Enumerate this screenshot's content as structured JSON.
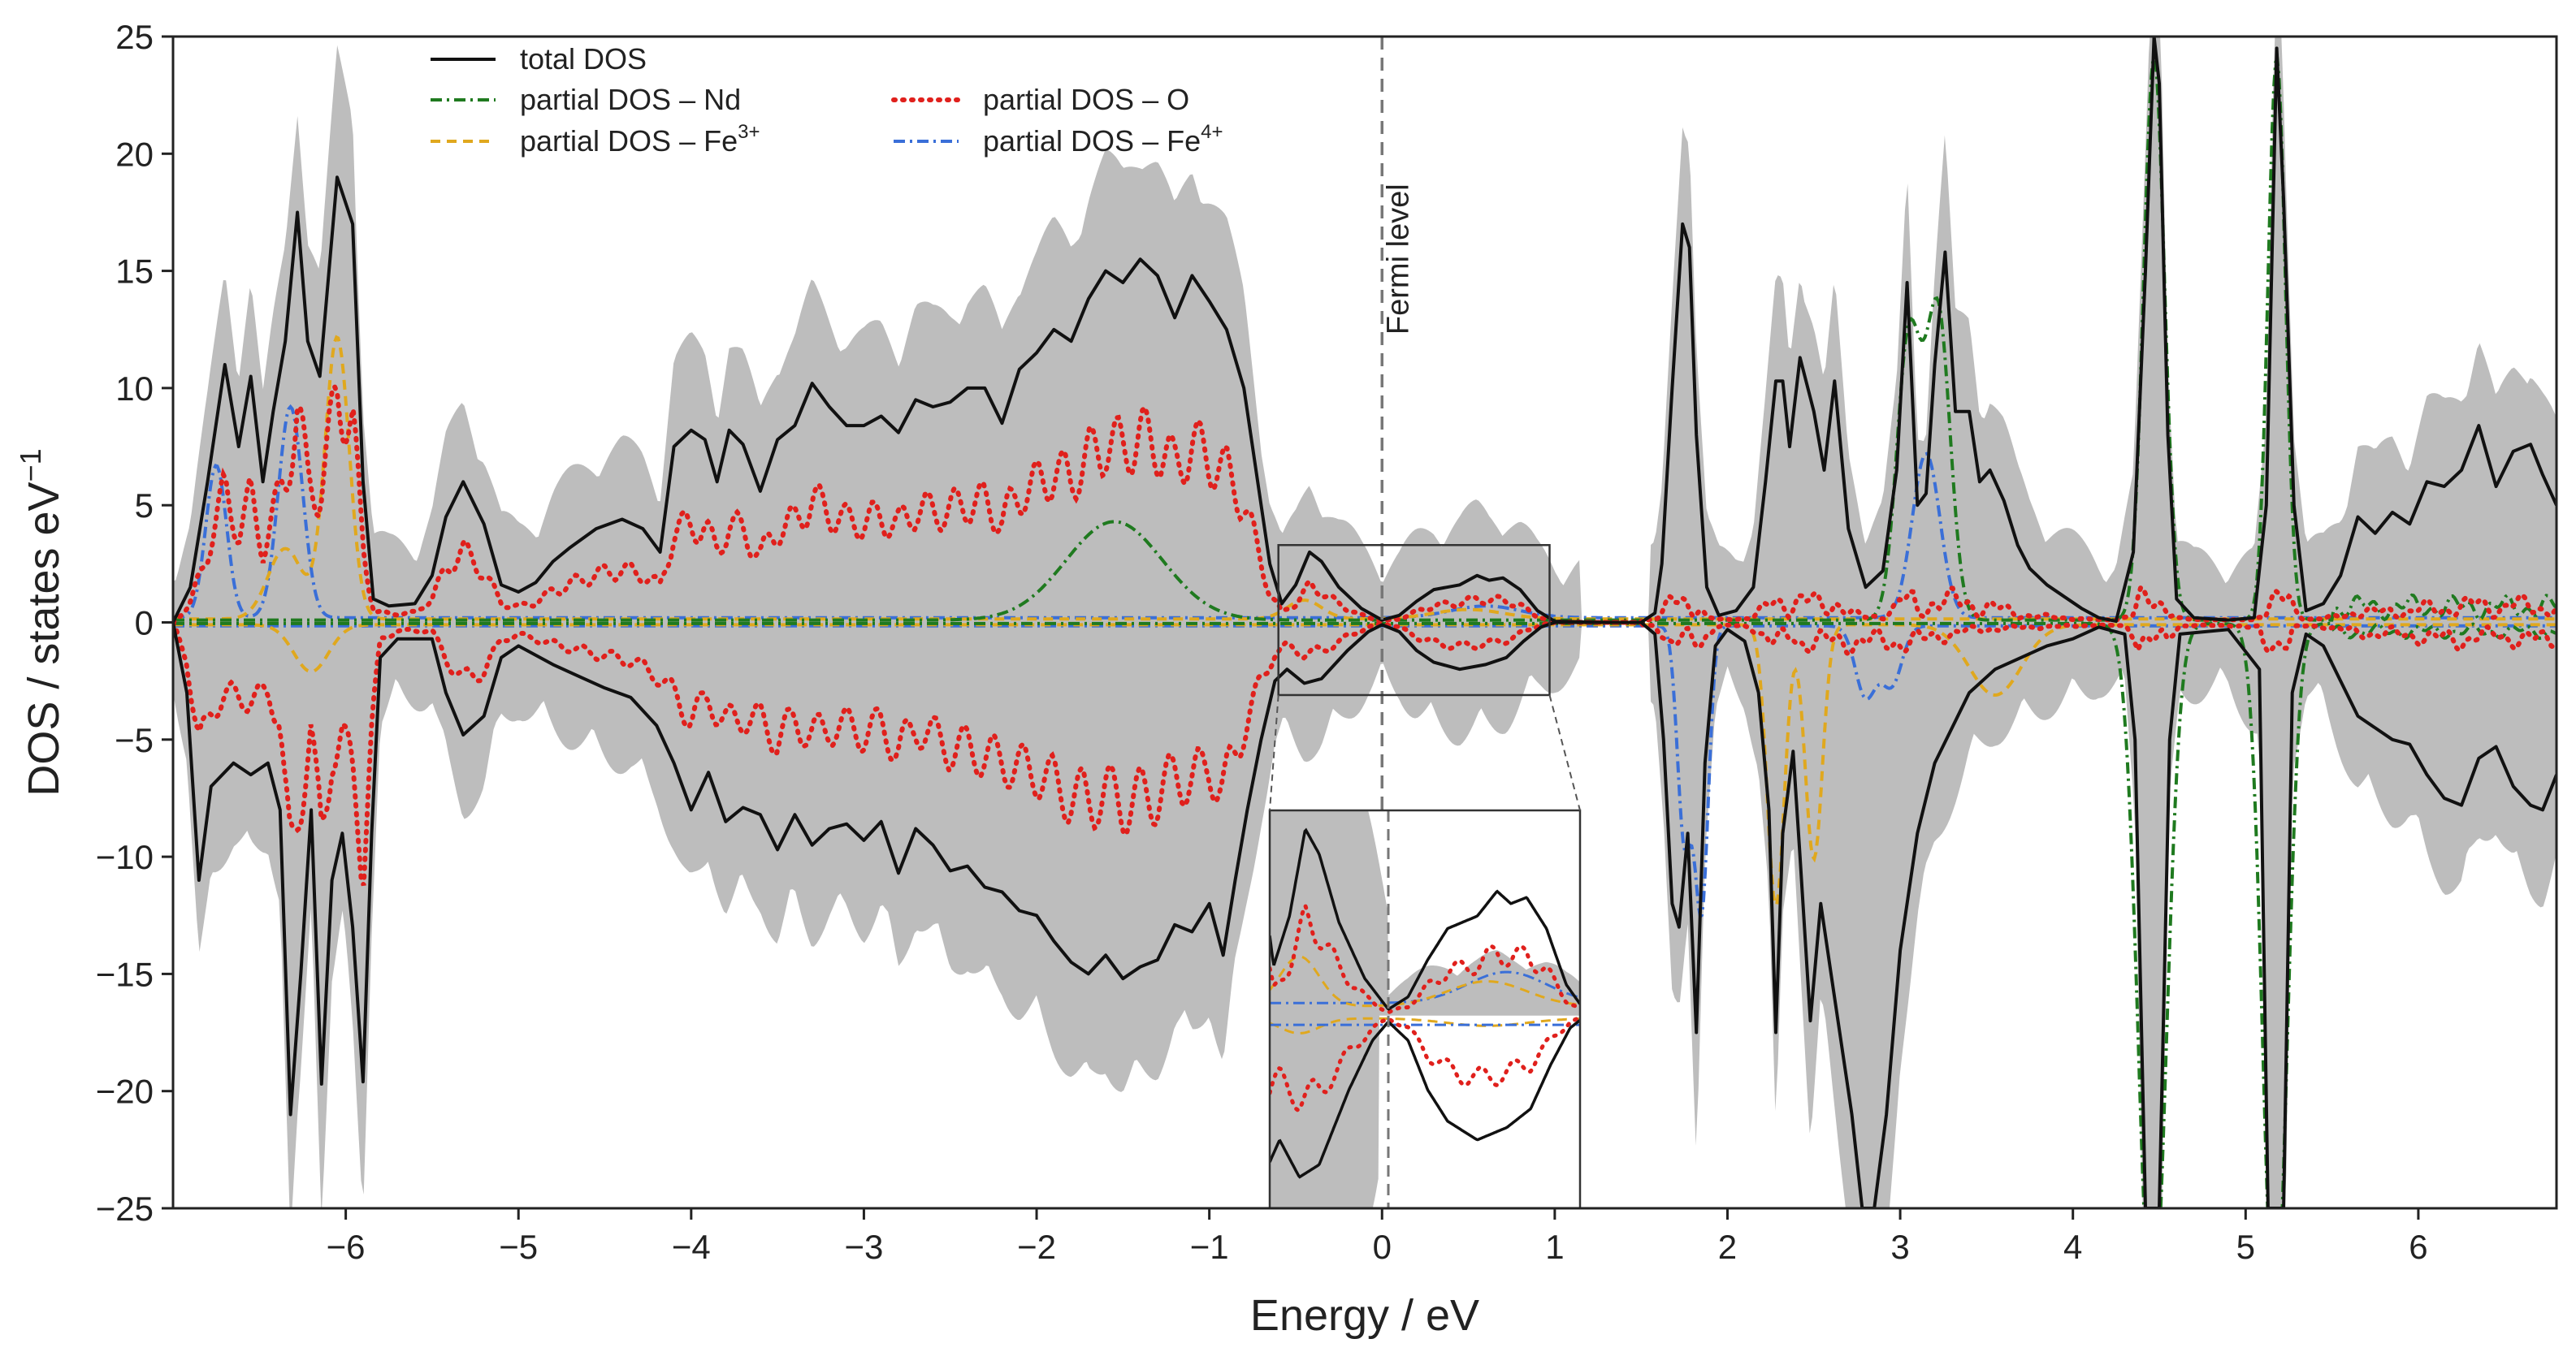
{
  "chart_data": {
    "type": "line",
    "title": "",
    "xlabel": "Energy / eV",
    "ylabel_main": "DOS / states eV",
    "ylabel_sup": "−1",
    "xlim": [
      -7.0,
      6.8
    ],
    "ylim": [
      -25,
      25
    ],
    "xticks": [
      -6,
      -5,
      -4,
      -3,
      -2,
      -1,
      0,
      1,
      2,
      3,
      4,
      5,
      6
    ],
    "yticks": [
      -25,
      -20,
      -15,
      -10,
      -5,
      0,
      5,
      10,
      15,
      20,
      25
    ],
    "tick_labels_x": [
      "−6",
      "−5",
      "−4",
      "−3",
      "−2",
      "−1",
      "0",
      "1",
      "2",
      "3",
      "4",
      "5",
      "6"
    ],
    "tick_labels_y": [
      "−25",
      "−20",
      "−15",
      "−10",
      "−5",
      "0",
      "5",
      "10",
      "15",
      "20",
      "25"
    ],
    "fermi_label": "Fermi level",
    "fermi_energy": 0,
    "legend_position": "top-left",
    "legend": [
      {
        "key": "total",
        "label": "total DOS",
        "sup": "",
        "color": "#111111",
        "dash": "none"
      },
      {
        "key": "nd",
        "label": "partial DOS – Nd",
        "sup": "",
        "color": "#1f7a1f",
        "dash": "14,6,3,6"
      },
      {
        "key": "fe3",
        "label": "partial DOS – Fe",
        "sup": "3+",
        "color": "#e0a81e",
        "dash": "12,8"
      },
      {
        "key": "o",
        "label": "partial DOS – O",
        "sup": "",
        "color": "#e0201c",
        "dash": "2,9"
      },
      {
        "key": "fe4",
        "label": "partial DOS – Fe",
        "sup": "4+",
        "color": "#3a6fd8",
        "dash": "14,6,3,6"
      }
    ],
    "shaded_band_color": "#bdbdbd",
    "series": [
      {
        "name": "total DOS (spin up)",
        "color": "#111111",
        "points": [
          [
            -7.0,
            0
          ],
          [
            -6.9,
            1.5
          ],
          [
            -6.8,
            6
          ],
          [
            -6.7,
            11
          ],
          [
            -6.62,
            7.5
          ],
          [
            -6.55,
            10.5
          ],
          [
            -6.48,
            6
          ],
          [
            -6.42,
            9
          ],
          [
            -6.35,
            12
          ],
          [
            -6.28,
            17.5
          ],
          [
            -6.22,
            12
          ],
          [
            -6.15,
            10.5
          ],
          [
            -6.05,
            19
          ],
          [
            -5.96,
            17
          ],
          [
            -5.9,
            6
          ],
          [
            -5.84,
            1
          ],
          [
            -5.75,
            0.7
          ],
          [
            -5.6,
            0.8
          ],
          [
            -5.5,
            2
          ],
          [
            -5.42,
            4.5
          ],
          [
            -5.32,
            6
          ],
          [
            -5.2,
            4.2
          ],
          [
            -5.1,
            1.6
          ],
          [
            -5.0,
            1.3
          ],
          [
            -4.9,
            1.7
          ],
          [
            -4.8,
            2.6
          ],
          [
            -4.7,
            3.2
          ],
          [
            -4.55,
            4
          ],
          [
            -4.4,
            4.4
          ],
          [
            -4.28,
            4
          ],
          [
            -4.18,
            3
          ],
          [
            -4.1,
            7.5
          ],
          [
            -4.0,
            8.2
          ],
          [
            -3.92,
            7.8
          ],
          [
            -3.85,
            6
          ],
          [
            -3.78,
            8.2
          ],
          [
            -3.7,
            7.6
          ],
          [
            -3.6,
            5.6
          ],
          [
            -3.5,
            7.8
          ],
          [
            -3.4,
            8.4
          ],
          [
            -3.3,
            10.2
          ],
          [
            -3.2,
            9.2
          ],
          [
            -3.1,
            8.4
          ],
          [
            -3.0,
            8.4
          ],
          [
            -2.9,
            8.8
          ],
          [
            -2.8,
            8.1
          ],
          [
            -2.7,
            9.5
          ],
          [
            -2.6,
            9.2
          ],
          [
            -2.5,
            9.4
          ],
          [
            -2.4,
            10
          ],
          [
            -2.3,
            10
          ],
          [
            -2.2,
            8.5
          ],
          [
            -2.1,
            10.8
          ],
          [
            -2.0,
            11.5
          ],
          [
            -1.9,
            12.5
          ],
          [
            -1.8,
            12
          ],
          [
            -1.7,
            13.8
          ],
          [
            -1.6,
            15
          ],
          [
            -1.5,
            14.5
          ],
          [
            -1.4,
            15.5
          ],
          [
            -1.3,
            14.8
          ],
          [
            -1.2,
            13
          ],
          [
            -1.1,
            14.8
          ],
          [
            -1.0,
            13.7
          ],
          [
            -0.9,
            12.5
          ],
          [
            -0.8,
            10
          ],
          [
            -0.72,
            6
          ],
          [
            -0.65,
            2.5
          ],
          [
            -0.58,
            0.8
          ],
          [
            -0.5,
            1.6
          ],
          [
            -0.42,
            3
          ],
          [
            -0.35,
            2.6
          ],
          [
            -0.25,
            1.5
          ],
          [
            -0.12,
            0.6
          ],
          [
            0.0,
            0.1
          ],
          [
            0.1,
            0.3
          ],
          [
            0.2,
            0.9
          ],
          [
            0.3,
            1.4
          ],
          [
            0.45,
            1.6
          ],
          [
            0.55,
            2
          ],
          [
            0.62,
            1.8
          ],
          [
            0.7,
            1.9
          ],
          [
            0.8,
            1.4
          ],
          [
            0.9,
            0.5
          ],
          [
            1.0,
            0.05
          ],
          [
            1.3,
            0
          ],
          [
            1.5,
            0
          ],
          [
            1.58,
            0.4
          ],
          [
            1.62,
            2.5
          ],
          [
            1.68,
            10
          ],
          [
            1.74,
            17
          ],
          [
            1.78,
            16
          ],
          [
            1.82,
            8
          ],
          [
            1.88,
            1.5
          ],
          [
            1.95,
            0.3
          ],
          [
            2.05,
            0.5
          ],
          [
            2.15,
            1.5
          ],
          [
            2.22,
            6
          ],
          [
            2.28,
            10.3
          ],
          [
            2.32,
            10.3
          ],
          [
            2.36,
            7.5
          ],
          [
            2.42,
            11.3
          ],
          [
            2.5,
            9
          ],
          [
            2.56,
            6.5
          ],
          [
            2.62,
            10.3
          ],
          [
            2.7,
            4
          ],
          [
            2.8,
            1.5
          ],
          [
            2.9,
            2.2
          ],
          [
            2.98,
            6.5
          ],
          [
            3.04,
            14.5
          ],
          [
            3.1,
            5
          ],
          [
            3.15,
            5.5
          ],
          [
            3.2,
            11
          ],
          [
            3.26,
            15.8
          ],
          [
            3.32,
            9
          ],
          [
            3.4,
            9
          ],
          [
            3.46,
            6
          ],
          [
            3.52,
            6.5
          ],
          [
            3.6,
            5.2
          ],
          [
            3.68,
            3.3
          ],
          [
            3.75,
            2.3
          ],
          [
            3.85,
            1.6
          ],
          [
            3.95,
            1.1
          ],
          [
            4.05,
            0.6
          ],
          [
            4.15,
            0.2
          ],
          [
            4.25,
            0.05
          ],
          [
            4.35,
            3
          ],
          [
            4.42,
            15
          ],
          [
            4.47,
            25
          ],
          [
            4.5,
            23
          ],
          [
            4.55,
            8
          ],
          [
            4.6,
            1
          ],
          [
            4.7,
            0.2
          ],
          [
            4.9,
            0.1
          ],
          [
            5.05,
            0.2
          ],
          [
            5.12,
            5
          ],
          [
            5.18,
            24.5
          ],
          [
            5.22,
            18
          ],
          [
            5.28,
            5
          ],
          [
            5.35,
            0.5
          ],
          [
            5.45,
            0.8
          ],
          [
            5.55,
            2
          ],
          [
            5.65,
            4.5
          ],
          [
            5.75,
            3.8
          ],
          [
            5.85,
            4.7
          ],
          [
            5.95,
            4.2
          ],
          [
            6.05,
            6
          ],
          [
            6.15,
            5.8
          ],
          [
            6.25,
            6.5
          ],
          [
            6.35,
            8.4
          ],
          [
            6.45,
            5.8
          ],
          [
            6.55,
            7.3
          ],
          [
            6.65,
            7.6
          ],
          [
            6.72,
            6.3
          ],
          [
            6.8,
            5
          ]
        ]
      },
      {
        "name": "total DOS (spin down)",
        "color": "#111111",
        "points": [
          [
            -7.0,
            0
          ],
          [
            -6.92,
            -3
          ],
          [
            -6.85,
            -11
          ],
          [
            -6.78,
            -7
          ],
          [
            -6.65,
            -6
          ],
          [
            -6.55,
            -6.5
          ],
          [
            -6.45,
            -6
          ],
          [
            -6.38,
            -8
          ],
          [
            -6.32,
            -21
          ],
          [
            -6.26,
            -15
          ],
          [
            -6.2,
            -8
          ],
          [
            -6.14,
            -19.7
          ],
          [
            -6.08,
            -11
          ],
          [
            -6.02,
            -9
          ],
          [
            -5.96,
            -13
          ],
          [
            -5.9,
            -19.6
          ],
          [
            -5.85,
            -9
          ],
          [
            -5.8,
            -1.5
          ],
          [
            -5.7,
            -0.7
          ],
          [
            -5.5,
            -0.7
          ],
          [
            -5.42,
            -3
          ],
          [
            -5.32,
            -4.8
          ],
          [
            -5.2,
            -4
          ],
          [
            -5.1,
            -1.5
          ],
          [
            -5.0,
            -1
          ],
          [
            -4.8,
            -1.8
          ],
          [
            -4.65,
            -2.3
          ],
          [
            -4.5,
            -2.8
          ],
          [
            -4.35,
            -3.2
          ],
          [
            -4.2,
            -4.4
          ],
          [
            -4.1,
            -6
          ],
          [
            -4.0,
            -8
          ],
          [
            -3.9,
            -6.4
          ],
          [
            -3.8,
            -8.5
          ],
          [
            -3.7,
            -7.9
          ],
          [
            -3.6,
            -8.2
          ],
          [
            -3.5,
            -9.7
          ],
          [
            -3.4,
            -8.2
          ],
          [
            -3.3,
            -9.5
          ],
          [
            -3.2,
            -8.8
          ],
          [
            -3.1,
            -8.6
          ],
          [
            -3.0,
            -9.3
          ],
          [
            -2.9,
            -8.5
          ],
          [
            -2.8,
            -10.7
          ],
          [
            -2.7,
            -8.8
          ],
          [
            -2.6,
            -9.5
          ],
          [
            -2.5,
            -10.6
          ],
          [
            -2.4,
            -10.4
          ],
          [
            -2.3,
            -11.3
          ],
          [
            -2.2,
            -11.5
          ],
          [
            -2.1,
            -12.3
          ],
          [
            -2.0,
            -12.5
          ],
          [
            -1.9,
            -13.6
          ],
          [
            -1.8,
            -14.5
          ],
          [
            -1.7,
            -15
          ],
          [
            -1.6,
            -14.2
          ],
          [
            -1.5,
            -15.2
          ],
          [
            -1.4,
            -14.7
          ],
          [
            -1.3,
            -14.4
          ],
          [
            -1.2,
            -12.9
          ],
          [
            -1.1,
            -13.2
          ],
          [
            -1.0,
            -12
          ],
          [
            -0.92,
            -14.2
          ],
          [
            -0.85,
            -11
          ],
          [
            -0.78,
            -8
          ],
          [
            -0.7,
            -5
          ],
          [
            -0.62,
            -2.5
          ],
          [
            -0.55,
            -2
          ],
          [
            -0.45,
            -2.6
          ],
          [
            -0.35,
            -2.4
          ],
          [
            -0.2,
            -1.2
          ],
          [
            -0.08,
            -0.4
          ],
          [
            0.0,
            -0.1
          ],
          [
            0.1,
            -0.4
          ],
          [
            0.2,
            -1.2
          ],
          [
            0.3,
            -1.7
          ],
          [
            0.45,
            -2.0
          ],
          [
            0.6,
            -1.8
          ],
          [
            0.72,
            -1.5
          ],
          [
            0.82,
            -0.8
          ],
          [
            0.92,
            -0.2
          ],
          [
            1.0,
            0
          ],
          [
            1.5,
            0
          ],
          [
            1.58,
            -0.5
          ],
          [
            1.63,
            -5
          ],
          [
            1.68,
            -12
          ],
          [
            1.72,
            -13
          ],
          [
            1.77,
            -9
          ],
          [
            1.82,
            -17.5
          ],
          [
            1.87,
            -6
          ],
          [
            1.93,
            -1
          ],
          [
            2.0,
            -0.3
          ],
          [
            2.1,
            -0.8
          ],
          [
            2.18,
            -3
          ],
          [
            2.24,
            -8
          ],
          [
            2.28,
            -17.5
          ],
          [
            2.32,
            -9
          ],
          [
            2.38,
            -5.5
          ],
          [
            2.42,
            -10
          ],
          [
            2.48,
            -17
          ],
          [
            2.54,
            -12
          ],
          [
            2.6,
            -15
          ],
          [
            2.66,
            -18
          ],
          [
            2.72,
            -21
          ],
          [
            2.78,
            -25
          ],
          [
            2.85,
            -25
          ],
          [
            2.92,
            -21
          ],
          [
            3.0,
            -14
          ],
          [
            3.1,
            -9
          ],
          [
            3.2,
            -6
          ],
          [
            3.3,
            -4.5
          ],
          [
            3.4,
            -3
          ],
          [
            3.55,
            -2
          ],
          [
            3.7,
            -1.5
          ],
          [
            3.85,
            -1
          ],
          [
            4.0,
            -0.7
          ],
          [
            4.15,
            -0.2
          ],
          [
            4.3,
            -0.5
          ],
          [
            4.36,
            -5
          ],
          [
            4.42,
            -25
          ],
          [
            4.5,
            -25
          ],
          [
            4.56,
            -5
          ],
          [
            4.62,
            -0.5
          ],
          [
            4.9,
            -0.3
          ],
          [
            5.08,
            -2
          ],
          [
            5.13,
            -25
          ],
          [
            5.22,
            -25
          ],
          [
            5.27,
            -3
          ],
          [
            5.35,
            -0.5
          ],
          [
            5.45,
            -1
          ],
          [
            5.55,
            -2.5
          ],
          [
            5.65,
            -4
          ],
          [
            5.75,
            -4.5
          ],
          [
            5.85,
            -5
          ],
          [
            5.95,
            -5.2
          ],
          [
            6.05,
            -6.5
          ],
          [
            6.15,
            -7.5
          ],
          [
            6.25,
            -7.8
          ],
          [
            6.35,
            -5.8
          ],
          [
            6.45,
            -5.3
          ],
          [
            6.55,
            -7
          ],
          [
            6.65,
            -7.8
          ],
          [
            6.72,
            -8
          ],
          [
            6.8,
            -6.5
          ]
        ]
      }
    ]
  }
}
